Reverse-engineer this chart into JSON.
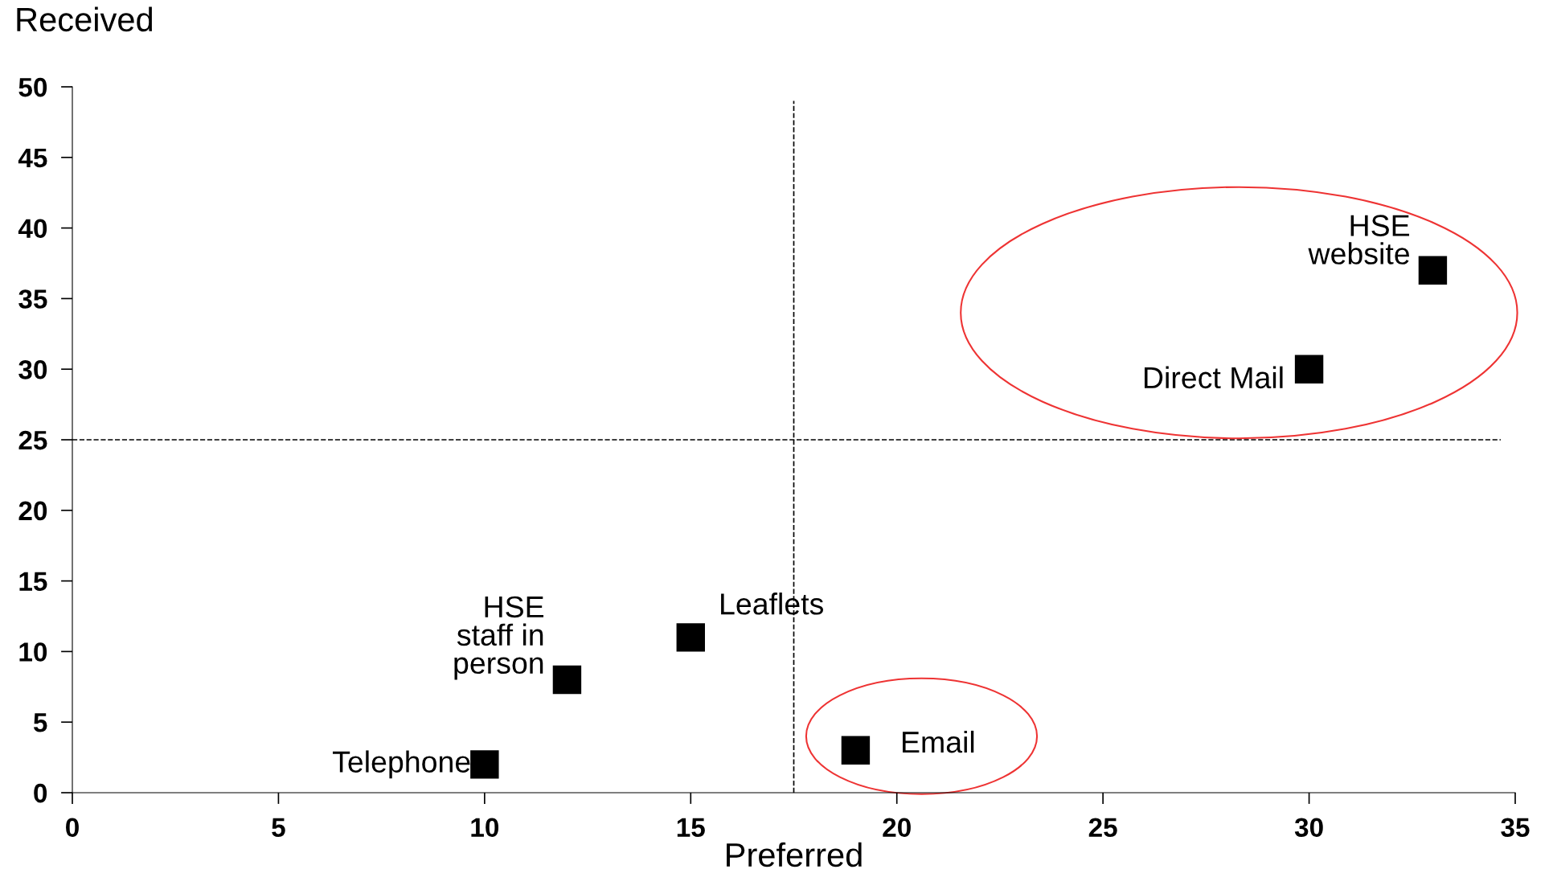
{
  "chart_data": {
    "type": "scatter",
    "xlabel": "Preferred",
    "ylabel": "Received",
    "xlim": [
      0,
      35
    ],
    "xticks": [
      0,
      5,
      10,
      15,
      20,
      25,
      30,
      35
    ],
    "ylim": [
      0,
      50
    ],
    "yticks": [
      0,
      5,
      10,
      15,
      20,
      25,
      30,
      35,
      40,
      45,
      50
    ],
    "series": [
      {
        "color": "#000000",
        "x": [
          10,
          12,
          15,
          19,
          30,
          33
        ],
        "values": [
          2,
          8,
          11,
          3,
          30,
          37
        ],
        "value_labels": [
          "Telephone",
          "HSE\nstaff in\nperson",
          "Leaflets",
          "Email",
          "Direct Mail",
          "HSE\nwebsite"
        ]
      }
    ],
    "marker": "square",
    "grid": false,
    "legend": false,
    "ref_lines": [
      {
        "axis": "x",
        "value": 17.5,
        "color": "#000000",
        "line_style": "dashed"
      },
      {
        "axis": "y",
        "value": 25,
        "color": "#000000",
        "line_style": "dashed"
      }
    ]
  }
}
